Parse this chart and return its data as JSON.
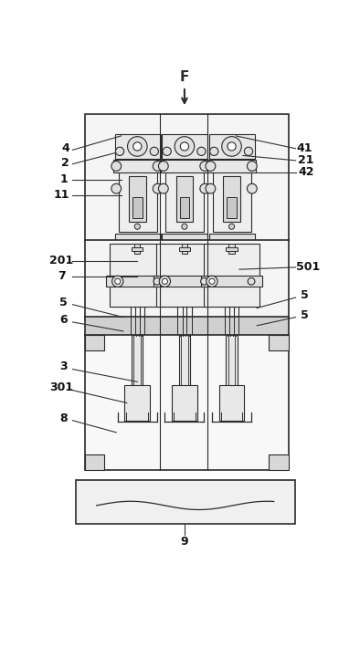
{
  "fig_width": 3.94,
  "fig_height": 7.21,
  "dpi": 100,
  "bg_color": "#ffffff",
  "line_color": "#2a2a2a",
  "fill_white": "#ffffff",
  "fill_light": "#f0f0f0",
  "fill_gray": "#d8d8d8",
  "bold_fs": 9,
  "ann_fs": 8
}
